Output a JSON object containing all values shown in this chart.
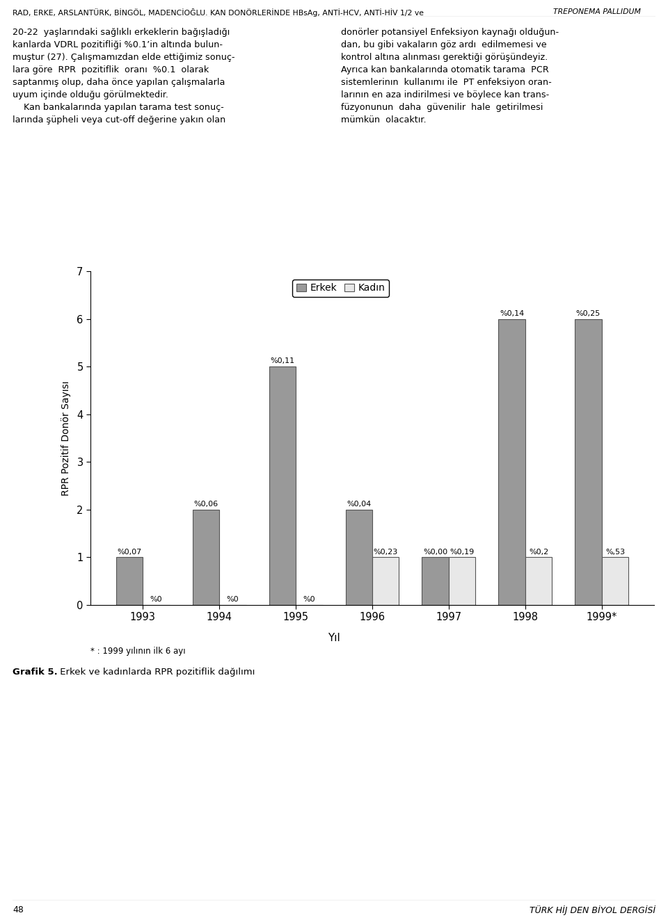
{
  "paragraph_left": "20-22  yaşlarındaki sağlıklı erkeklerin bağışladığı\nkanlarda VDRL pozitifliği %0.1’in altında bulun-\nmuştur (27). Çalışmamızdan elde ettiğimiz sonuç-\nlara göre  RPR  pozitiflik  oranı  %0.1  olarak\nsaptanmış olup, daha önce yapılan çalışmalarla\nuyum içinde olduğu görülmektedir.\n    Kan bankalarında yapılan tarama test sonuç-\nlarında şüpheli veya cut-off değerine yakın olan",
  "paragraph_right": "donörler potansiyel Enfeksiyon kaynağı olduğun-\ndan, bu gibi vakaların göz ardı  edilmemesi ve\nkontrol altına alınması gerektiği görüşündeyiz.\nAyrıca kan bankalarında otomatik tarama  PCR\nsistemlerinın  kullanımı ile  PT enfeksiyon oran-\nlarının en aza indirilmesi ve böylece kan trans-\nfüzyonunun  daha  güvenilir  hale  getirilmesi\nmümkün  olacaktır.",
  "years": [
    "1993",
    "1994",
    "1995",
    "1996",
    "1997",
    "1998",
    "1999*"
  ],
  "erkek_values": [
    1,
    2,
    5,
    2,
    1,
    6,
    6
  ],
  "kadin_values": [
    0,
    0,
    0,
    1,
    1,
    1,
    1
  ],
  "erkek_labels": [
    "%0,07",
    "%0,06",
    "%0,11",
    "%0,04",
    "%0,00",
    "%0,14",
    "%0,25"
  ],
  "kadin_labels": [
    "%0",
    "%0",
    "%0",
    "%0,23",
    "%0,19",
    "%0,2",
    "%,53"
  ],
  "erkek_color": "#999999",
  "kadin_color": "#e8e8e8",
  "bar_edge_color": "#555555",
  "ylabel": "RPR Pozitif Donör Sayısı",
  "xlabel": "Yıl",
  "ylim": [
    0,
    7
  ],
  "yticks": [
    0,
    1,
    2,
    3,
    4,
    5,
    6,
    7
  ],
  "legend_erkek": "Erkek",
  "legend_kadin": "Kadın",
  "footnote": "* : 1999 yılının ilk 6 ayı",
  "caption_bold": "Grafik 5.",
  "caption_normal": " Erkek ve kadınlarda RPR pozitiflik dağılımı",
  "page_left": "48",
  "page_right": "TÜRK HİJ DEN BİYOL DERGİSİ",
  "background_color": "#ffffff",
  "header_normal": "RAD, ERKE, ARSLANTÜRK, BİNGÖL, MADENCİOĞLU. KAN DONÖRLERİNDE HBsAg, ANTİ-HCV, ANTİ-HİV 1/2 ve ",
  "header_italic": "TREPONEMA PALLIDUM"
}
